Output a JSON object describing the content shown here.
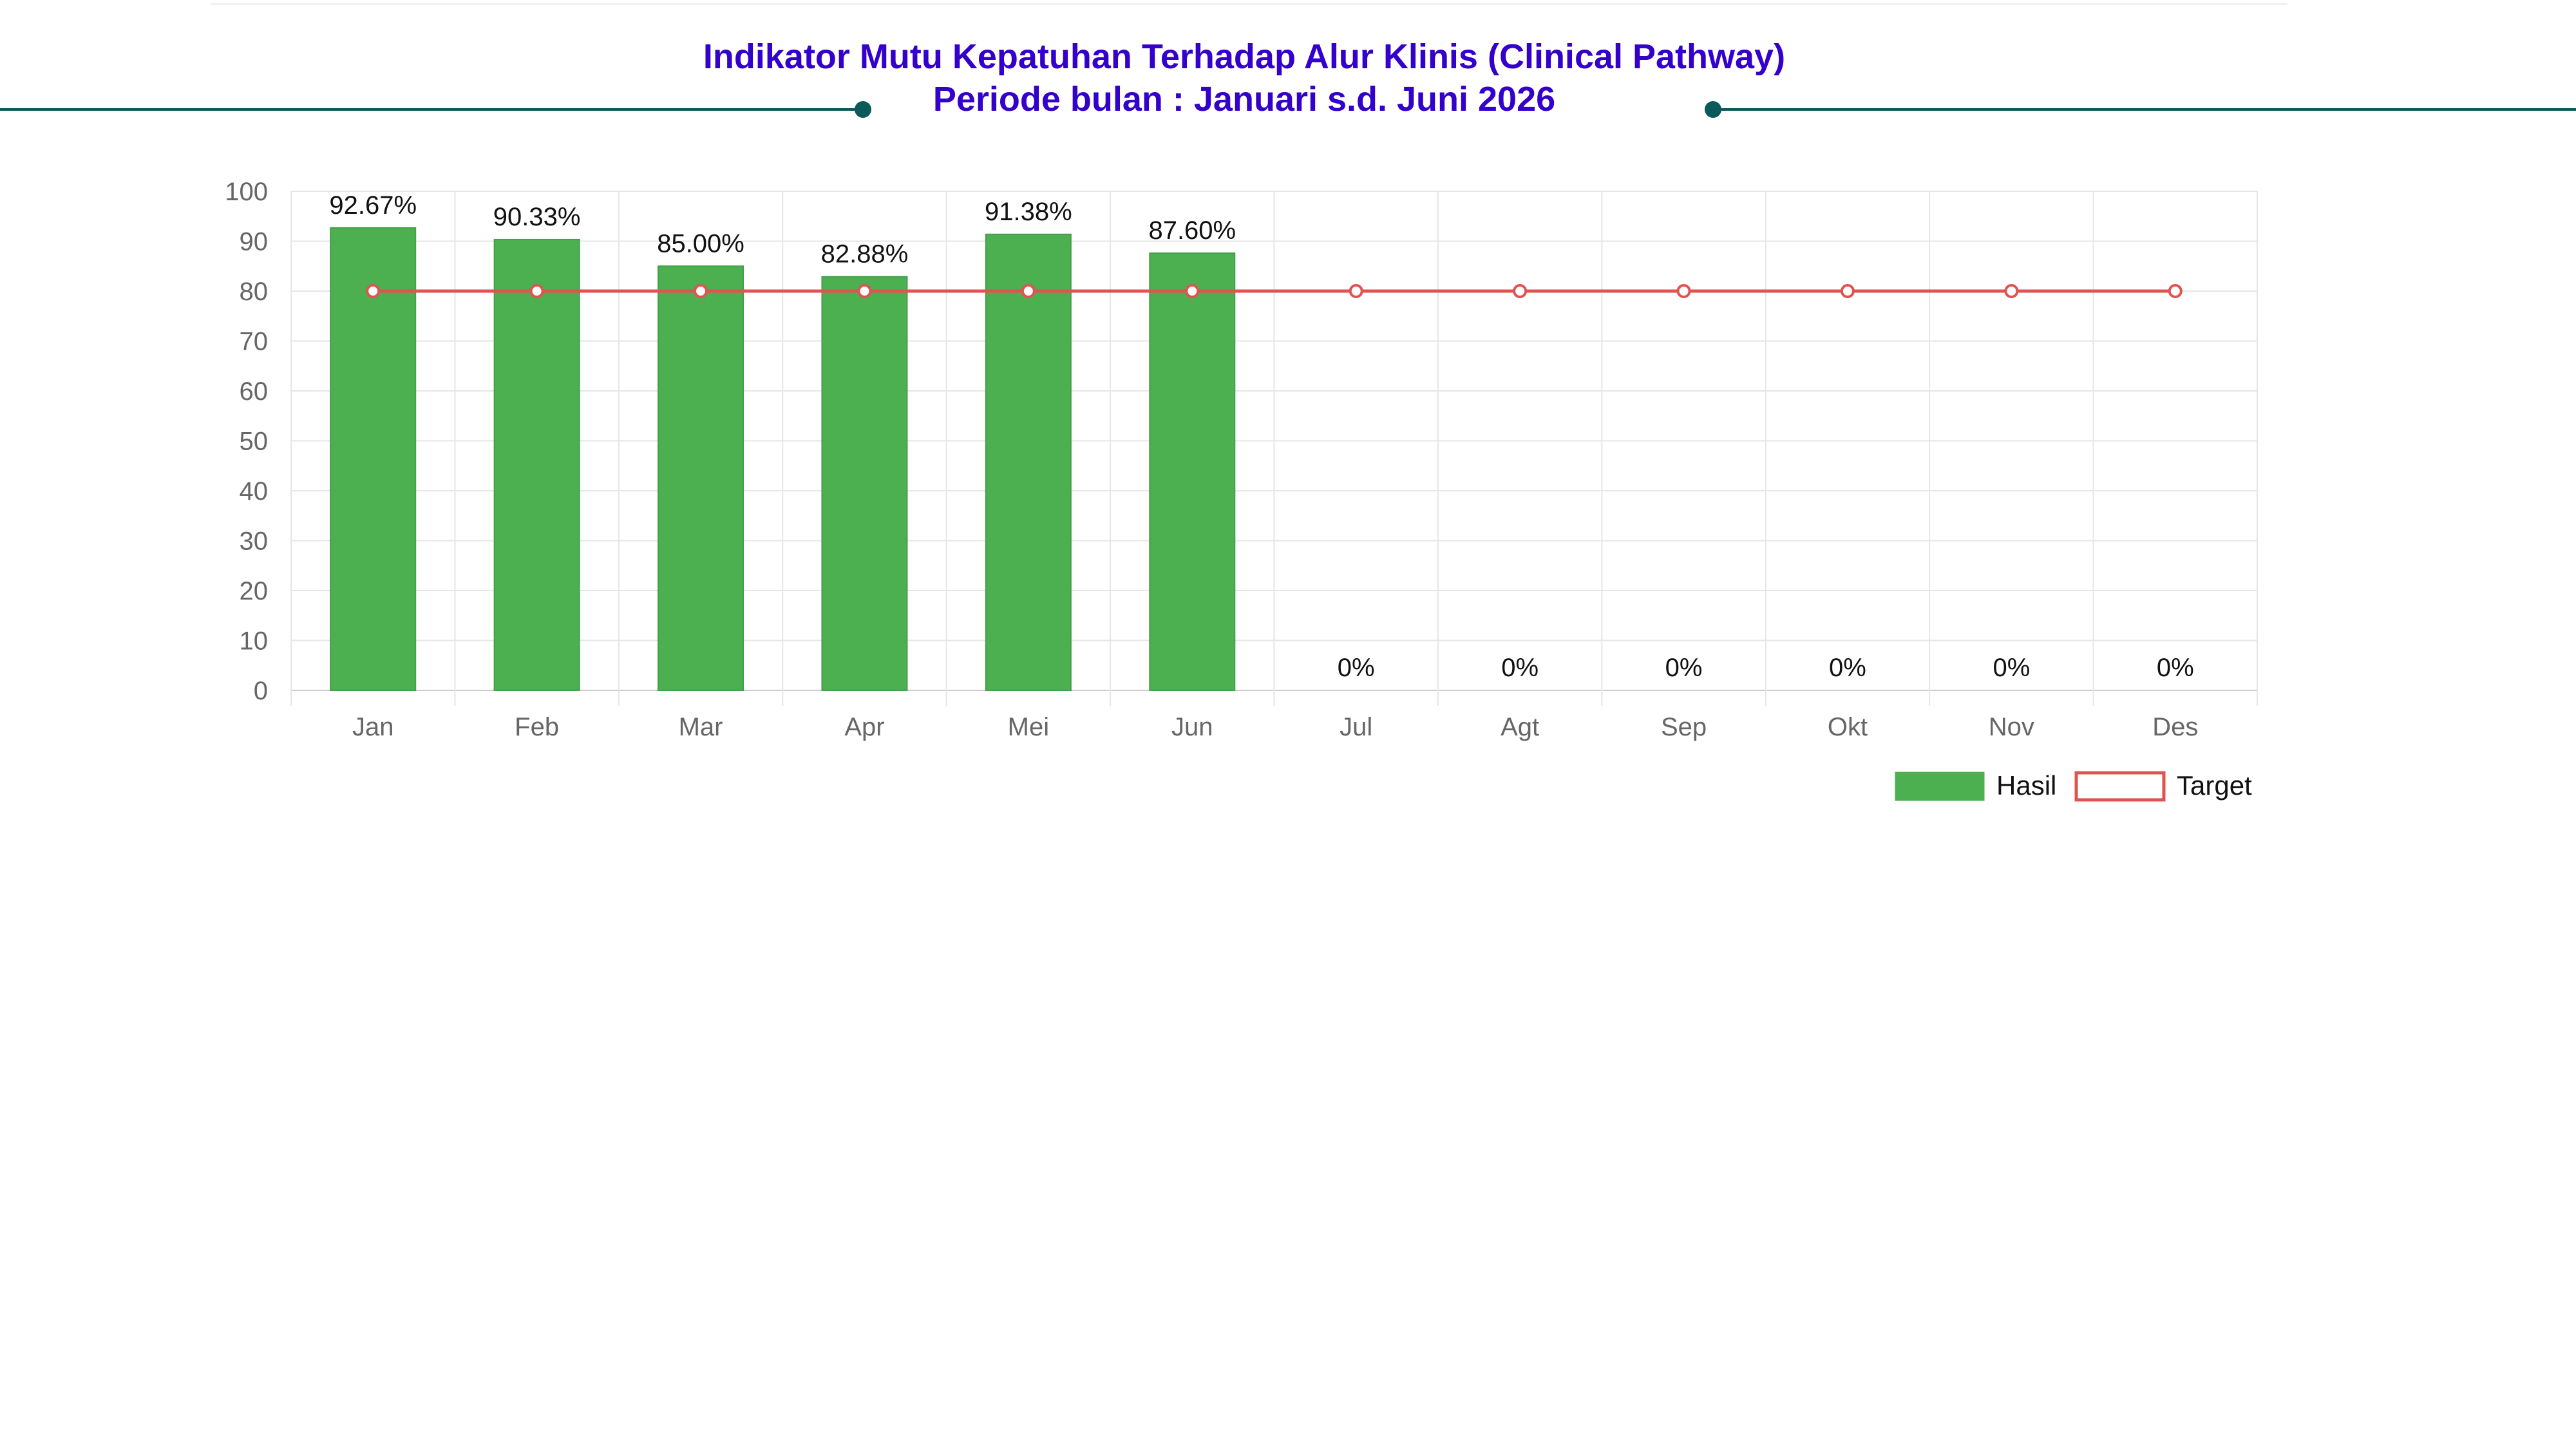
{
  "header": {
    "title": "Indikator Mutu Kepatuhan Terhadap Alur Klinis (Clinical Pathway)",
    "subtitle": "Periode bulan : Januari s.d. Juni 2026"
  },
  "colors": {
    "title": "#3300cc",
    "decoration": "#0b5a5a",
    "bar": "#4caf50",
    "target": "#e05350",
    "grid": "#e6e6e6",
    "axis_text": "#666666",
    "label_text": "#111111"
  },
  "chart_data": {
    "type": "bar",
    "categories": [
      "Jan",
      "Feb",
      "Mar",
      "Apr",
      "Mei",
      "Jun",
      "Jul",
      "Agt",
      "Sep",
      "Okt",
      "Nov",
      "Des"
    ],
    "series": [
      {
        "name": "Hasil",
        "type": "bar",
        "values": [
          92.67,
          90.33,
          85.0,
          82.88,
          91.38,
          87.6,
          0,
          0,
          0,
          0,
          0,
          0
        ],
        "labels": [
          "92.67%",
          "90.33%",
          "85.00%",
          "82.88%",
          "91.38%",
          "87.60%",
          "0%",
          "0%",
          "0%",
          "0%",
          "0%",
          "0%"
        ]
      },
      {
        "name": "Target",
        "type": "line",
        "values": [
          80,
          80,
          80,
          80,
          80,
          80,
          80,
          80,
          80,
          80,
          80,
          80
        ]
      }
    ],
    "yticks": [
      0,
      10,
      20,
      30,
      40,
      50,
      60,
      70,
      80,
      90,
      100
    ],
    "ylim": [
      0,
      100
    ],
    "grid": true,
    "legend_position": "bottom-right"
  }
}
